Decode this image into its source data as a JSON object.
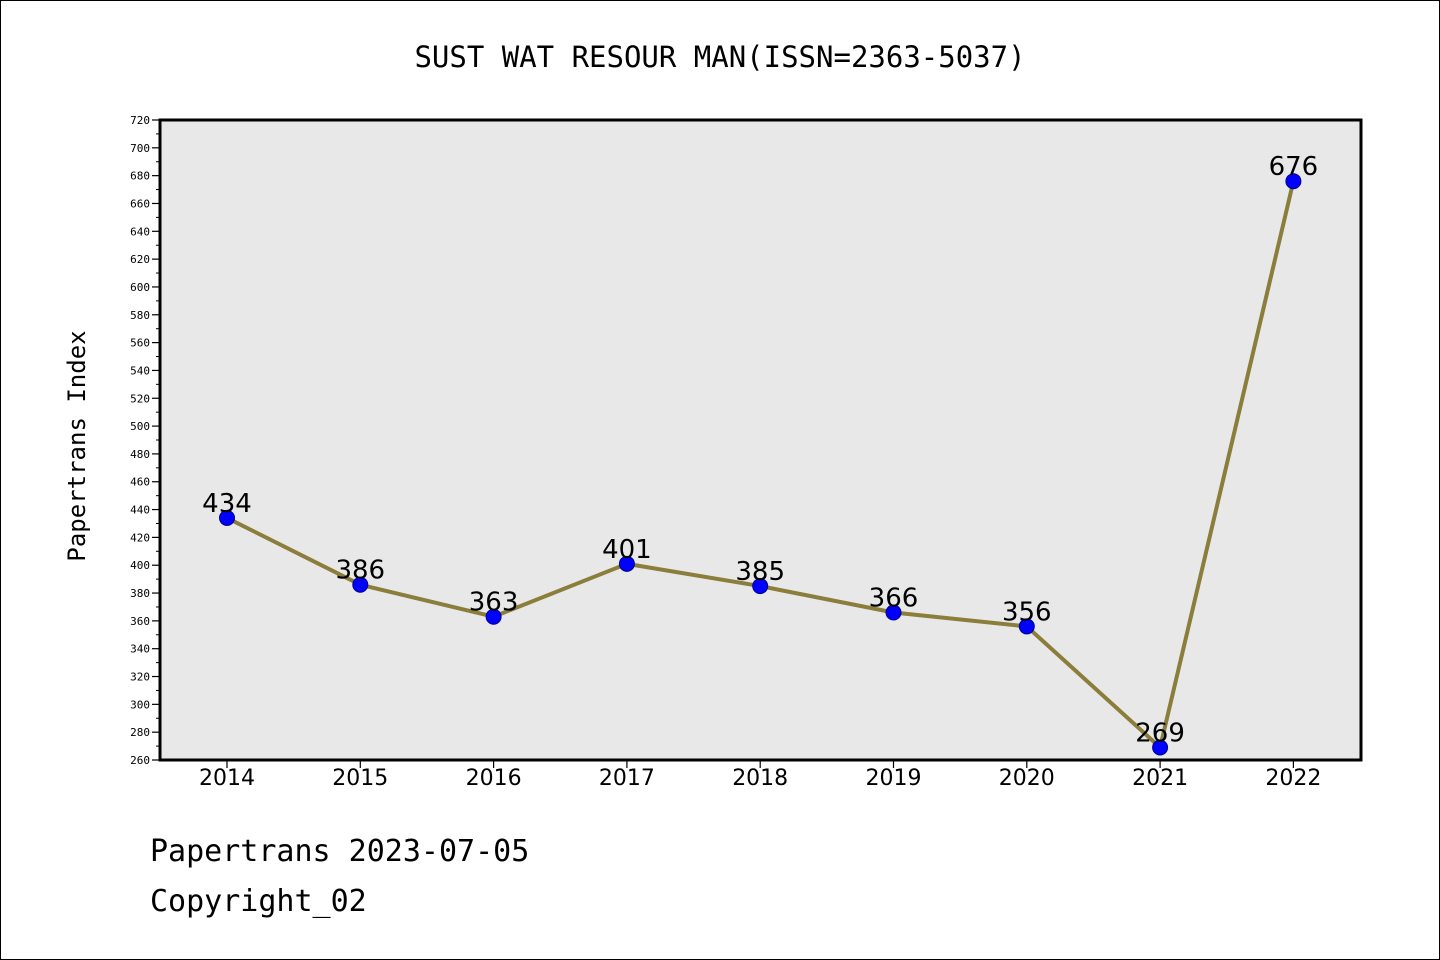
{
  "chart_data": {
    "type": "line",
    "title": "SUST WAT RESOUR MAN(ISSN=2363-5037)",
    "ylabel": "Papertrans Index",
    "xlabel": "",
    "categories": [
      "2014",
      "2015",
      "2016",
      "2017",
      "2018",
      "2019",
      "2020",
      "2021",
      "2022"
    ],
    "series": [
      {
        "values": [
          434,
          386,
          363,
          401,
          385,
          366,
          356,
          269,
          676
        ]
      }
    ],
    "ylim": [
      260,
      720
    ],
    "y_ticks": [
      260,
      280,
      300,
      320,
      340,
      360,
      380,
      400,
      420,
      440,
      460,
      480,
      500,
      520,
      540,
      560,
      580,
      600,
      620,
      640,
      660,
      680,
      700,
      720
    ],
    "data_labels": true,
    "grid": false,
    "colors": {
      "line": "#8b7d3a",
      "marker": "#0000ff",
      "plot_background": "#e8e8e8",
      "axis": "#000000"
    }
  },
  "footer": {
    "line1": "Papertrans 2023-07-05",
    "line2": "Copyright_02"
  }
}
